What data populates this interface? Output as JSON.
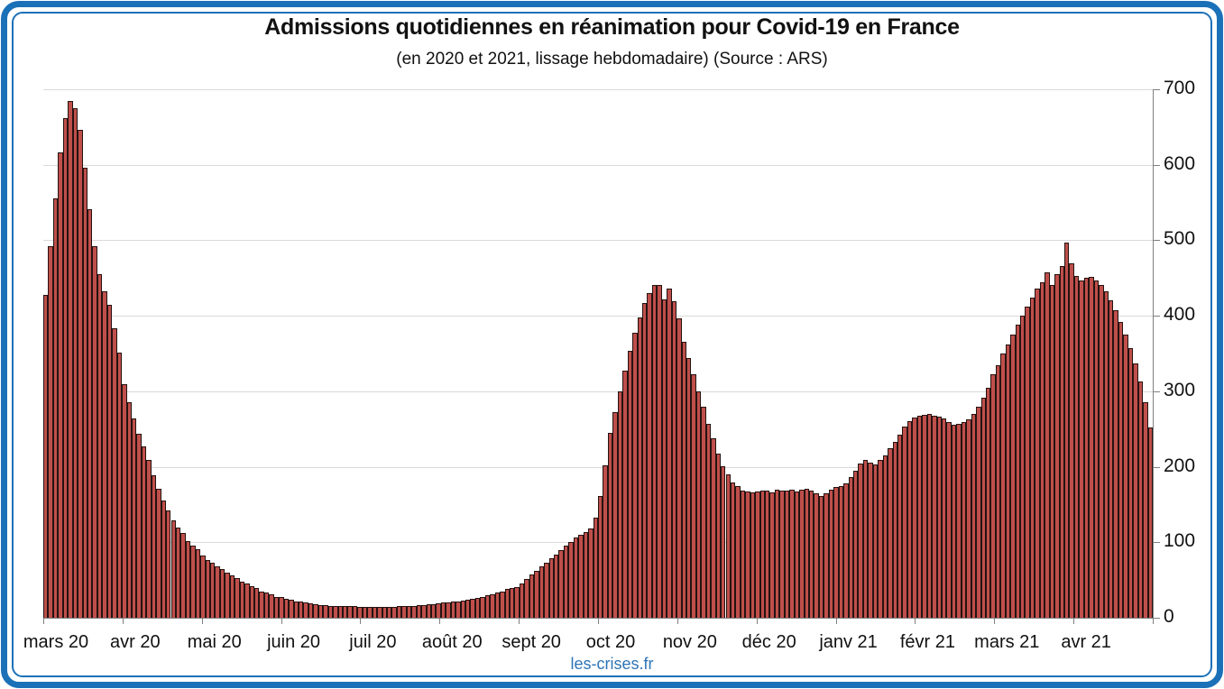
{
  "frame": {
    "border_color": "#1b71b8",
    "background": "#ffffff"
  },
  "header": {
    "title": "Admissions quotidiennes en réanimation pour Covid-19 en France",
    "subtitle": "(en 2020 et 2021, lissage hebdomadaire) (Source : ARS)"
  },
  "footer": {
    "link": "les-crises.fr",
    "color": "#2e75b6"
  },
  "chart_data": {
    "type": "bar",
    "title": "Admissions quotidiennes en réanimation pour Covid-19 en France",
    "subtitle": "(en 2020 et 2021, lissage hebdomadaire) (Source : ARS)",
    "xlabel": "",
    "ylabel": "",
    "ylim": [
      0,
      700
    ],
    "y_ticks": [
      0,
      100,
      200,
      300,
      400,
      500,
      600,
      700
    ],
    "y_axis_side": "right",
    "grid": "horizontal",
    "legend": "none",
    "bar_fill": "#bf4f4b",
    "bar_stroke": "#241311",
    "gridline_color": "#d9d9d9",
    "axis_color": "#808080",
    "x_tick_labels": [
      "mars 20",
      "avr 20",
      "mai 20",
      "juin 20",
      "juil 20",
      "août 20",
      "sept 20",
      "oct 20",
      "nov 20",
      "déc 20",
      "janv 21",
      "févr 21",
      "mars 21",
      "avr 21"
    ],
    "values_unit": "admissions par jour (1 barre ≈ 2 jours)",
    "values": [
      428,
      492,
      556,
      616,
      662,
      685,
      675,
      646,
      596,
      541,
      492,
      455,
      432,
      414,
      384,
      351,
      309,
      286,
      264,
      244,
      227,
      209,
      189,
      171,
      155,
      142,
      129,
      119,
      112,
      101,
      96,
      91,
      83,
      77,
      73,
      68,
      64,
      60,
      56,
      52,
      48,
      45,
      42,
      39,
      35,
      33,
      31,
      28,
      27,
      25,
      24,
      22,
      21,
      20,
      19,
      18,
      17,
      17,
      16,
      16,
      15,
      15,
      15,
      15,
      14,
      14,
      14,
      14,
      14,
      14,
      14,
      14,
      15,
      15,
      15,
      16,
      17,
      17,
      18,
      18,
      19,
      20,
      20,
      21,
      22,
      23,
      24,
      25,
      26,
      28,
      30,
      31,
      33,
      35,
      38,
      39,
      41,
      46,
      51,
      57,
      62,
      68,
      73,
      79,
      84,
      90,
      95,
      100,
      106,
      110,
      113,
      118,
      133,
      161,
      202,
      245,
      272,
      300,
      327,
      354,
      378,
      398,
      417,
      430,
      441,
      441,
      422,
      436,
      419,
      397,
      366,
      344,
      322,
      300,
      279,
      257,
      238,
      218,
      201,
      190,
      179,
      174,
      169,
      167,
      166,
      167,
      169,
      169,
      166,
      170,
      168,
      169,
      170,
      167,
      170,
      171,
      168,
      165,
      161,
      165,
      170,
      173,
      174,
      178,
      186,
      195,
      204,
      209,
      206,
      203,
      209,
      215,
      225,
      233,
      242,
      253,
      261,
      265,
      267,
      269,
      270,
      268,
      266,
      264,
      259,
      256,
      257,
      259,
      263,
      270,
      280,
      292,
      305,
      322,
      335,
      350,
      362,
      375,
      388,
      400,
      412,
      424,
      436,
      444,
      458,
      441,
      455,
      466,
      497,
      470,
      453,
      447,
      450,
      452,
      447,
      441,
      432,
      420,
      407,
      392,
      375,
      357,
      337,
      313,
      285,
      252
    ]
  }
}
